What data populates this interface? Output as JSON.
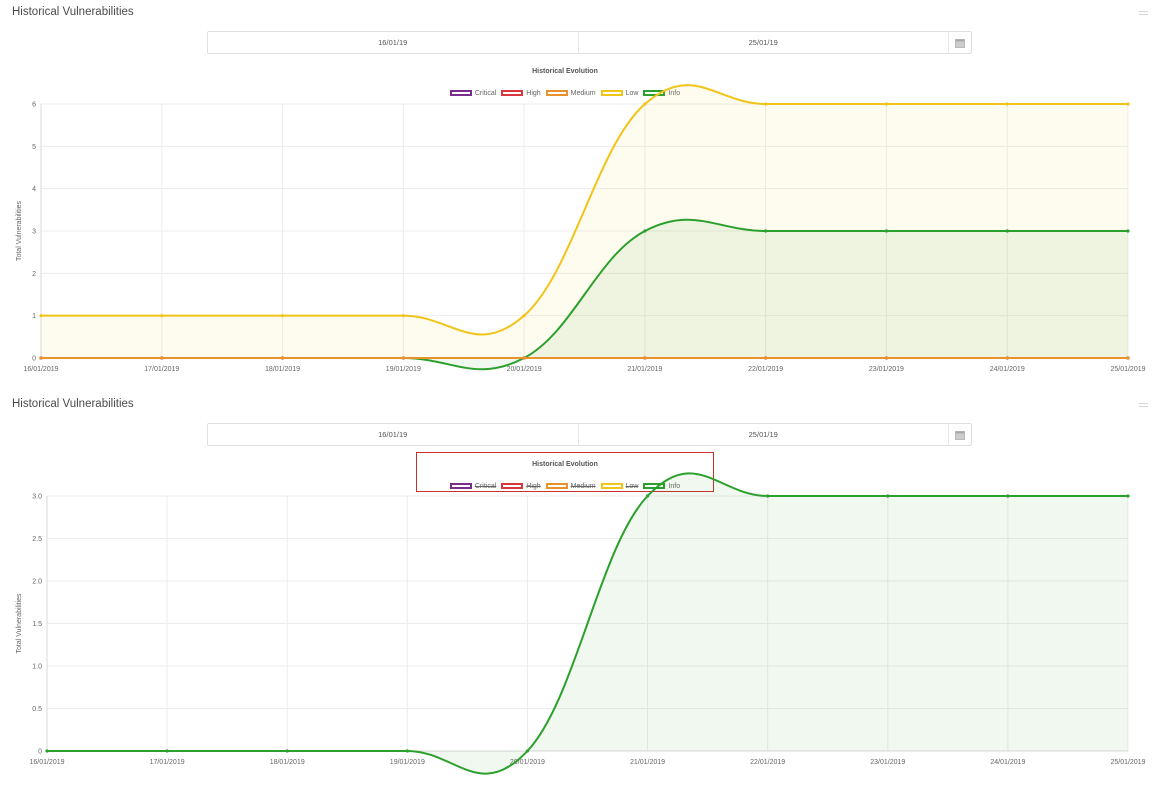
{
  "panels": [
    {
      "title": "Historical Vulnerabilities",
      "date_from": "16/01/19",
      "date_to": "25/01/19",
      "chart_title": "Historical Evolution",
      "legend": [
        {
          "label": "Critical",
          "color": "#7b2d8e",
          "hidden": false
        },
        {
          "label": "High",
          "color": "#d9363e",
          "hidden": false
        },
        {
          "label": "Medium",
          "color": "#e8912d",
          "hidden": false
        },
        {
          "label": "Low",
          "color": "#f0c419",
          "hidden": false
        },
        {
          "label": "Info",
          "color": "#2ca02c",
          "hidden": false
        }
      ]
    },
    {
      "title": "Historical Vulnerabilities",
      "date_from": "16/01/19",
      "date_to": "25/01/19",
      "chart_title": "Historical Evolution",
      "legend_highlighted": true,
      "legend": [
        {
          "label": "Critical",
          "color": "#7b2d8e",
          "hidden": true
        },
        {
          "label": "High",
          "color": "#d9363e",
          "hidden": true
        },
        {
          "label": "Medium",
          "color": "#e8912d",
          "hidden": true
        },
        {
          "label": "Low",
          "color": "#f0c419",
          "hidden": true
        },
        {
          "label": "Info",
          "color": "#2ca02c",
          "hidden": false
        }
      ]
    }
  ],
  "chart_data": [
    {
      "type": "area",
      "title": "Historical Evolution",
      "ylabel": "Total Vulnerabilities",
      "xlabel": "",
      "x": [
        "16/01/2019",
        "17/01/2019",
        "18/01/2019",
        "19/01/2019",
        "20/01/2019",
        "21/01/2019",
        "22/01/2019",
        "23/01/2019",
        "24/01/2019",
        "25/01/2019"
      ],
      "yticks": [
        "0",
        "1",
        "2",
        "3",
        "4",
        "5",
        "6"
      ],
      "ylim": [
        0,
        6
      ],
      "grid": true,
      "legend_position": "top",
      "series": [
        {
          "name": "Critical",
          "color": "#7b2d8e",
          "values": [
            0,
            0,
            0,
            0,
            0,
            0,
            0,
            0,
            0,
            0
          ]
        },
        {
          "name": "High",
          "color": "#d9363e",
          "values": [
            0,
            0,
            0,
            0,
            0,
            0,
            0,
            0,
            0,
            0
          ]
        },
        {
          "name": "Medium",
          "color": "#e8912d",
          "values": [
            0,
            0,
            0,
            0,
            0,
            0,
            0,
            0,
            0,
            0
          ]
        },
        {
          "name": "Low",
          "color": "#f0c419",
          "values": [
            1,
            1,
            1,
            1,
            1,
            6,
            6,
            6,
            6,
            6
          ]
        },
        {
          "name": "Info",
          "color": "#2ca02c",
          "values": [
            0,
            0,
            0,
            0,
            0,
            3,
            3,
            3,
            3,
            3
          ]
        }
      ]
    },
    {
      "type": "area",
      "title": "Historical Evolution",
      "ylabel": "Total Vulnerabilities",
      "xlabel": "",
      "x": [
        "16/01/2019",
        "17/01/2019",
        "18/01/2019",
        "19/01/2019",
        "20/01/2019",
        "21/01/2019",
        "22/01/2019",
        "23/01/2019",
        "24/01/2019",
        "25/01/2019"
      ],
      "yticks": [
        "0",
        "0.5",
        "1.0",
        "1.5",
        "2.0",
        "2.5",
        "3.0"
      ],
      "ylim": [
        0,
        3
      ],
      "grid": true,
      "legend_position": "top",
      "series": [
        {
          "name": "Info",
          "color": "#2ca02c",
          "values": [
            0,
            0,
            0,
            0,
            0,
            3,
            3,
            3,
            3,
            3
          ]
        }
      ]
    }
  ]
}
